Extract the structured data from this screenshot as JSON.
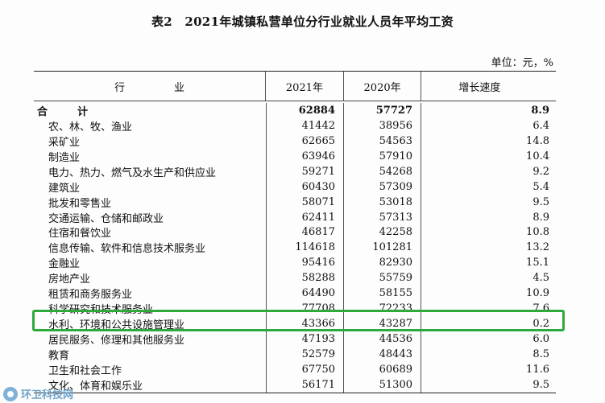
{
  "title": "表2　2021年城镇私营单位分行业就业人员年平均工资",
  "unit": "单位：元，%",
  "headers": [
    "行　业",
    "2021年",
    "2020年",
    "增长速度"
  ],
  "total": {
    "name": "合　计",
    "y2021": "62884",
    "y2020": "57727",
    "growth": "8.9"
  },
  "rows": [
    {
      "name": "农、林、牧、渔业",
      "y2021": "41442",
      "y2020": "38956",
      "growth": "6.4"
    },
    {
      "name": "采矿业",
      "y2021": "62665",
      "y2020": "54563",
      "growth": "14.8"
    },
    {
      "name": "制造业",
      "y2021": "63946",
      "y2020": "57910",
      "growth": "10.4"
    },
    {
      "name": "电力、热力、燃气及水生产和供应业",
      "y2021": "59271",
      "y2020": "54268",
      "growth": "9.2"
    },
    {
      "name": "建筑业",
      "y2021": "60430",
      "y2020": "57309",
      "growth": "5.4"
    },
    {
      "name": "批发和零售业",
      "y2021": "58071",
      "y2020": "53018",
      "growth": "9.5"
    },
    {
      "name": "交通运输、仓储和邮政业",
      "y2021": "62411",
      "y2020": "57313",
      "growth": "8.9"
    },
    {
      "name": "住宿和餐饮业",
      "y2021": "46817",
      "y2020": "42258",
      "growth": "10.8"
    },
    {
      "name": "信息传输、软件和信息技术服务业",
      "y2021": "114618",
      "y2020": "101281",
      "growth": "13.2"
    },
    {
      "name": "金融业",
      "y2021": "95416",
      "y2020": "82930",
      "growth": "15.1"
    },
    {
      "name": "房地产业",
      "y2021": "58288",
      "y2020": "55759",
      "growth": "4.5"
    },
    {
      "name": "租赁和商务服务业",
      "y2021": "64490",
      "y2020": "58155",
      "growth": "10.9"
    },
    {
      "name": "科学研究和技术服务业",
      "y2021": "77708",
      "y2020": "72233",
      "growth": "7.6"
    },
    {
      "name": "水利、环境和公共设施管理业",
      "y2021": "43366",
      "y2020": "43287",
      "growth": "0.2"
    },
    {
      "name": "居民服务、修理和其他服务业",
      "y2021": "47193",
      "y2020": "44536",
      "growth": "6.0"
    },
    {
      "name": "教育",
      "y2021": "52579",
      "y2020": "48443",
      "growth": "8.5"
    },
    {
      "name": "卫生和社会工作",
      "y2021": "67750",
      "y2020": "60689",
      "growth": "11.6"
    },
    {
      "name": "文化、体育和娱乐业",
      "y2021": "56171",
      "y2020": "51300",
      "growth": "9.5"
    }
  ],
  "highlight_color": "#2eaa3c",
  "watermark": "环卫科技网"
}
